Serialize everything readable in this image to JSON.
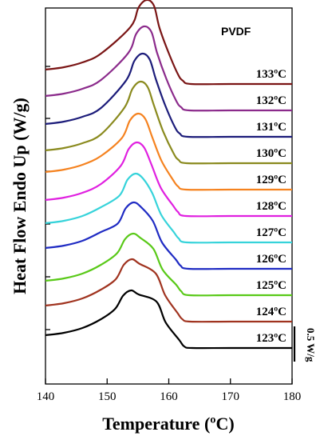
{
  "chart_data": {
    "type": "line",
    "title": "PVDF",
    "xlabel": "Temperature (ºC)",
    "ylabel": "Heat Flow Endo Up (W/g)",
    "xlim": [
      140,
      180
    ],
    "xticks": [
      140,
      150,
      160,
      170,
      180
    ],
    "xtick_labels": [
      "140",
      "150",
      "160",
      "170",
      "180"
    ],
    "scale_bar_label": "0.5 W/g",
    "grid": false,
    "series": [
      {
        "name": "123ºC",
        "color": "#000000",
        "onset_ht": 0.16,
        "peak_t": 153.9,
        "peak_ht": 0.72,
        "shoulder_t": 158.0,
        "shoulder_ht": 0.58,
        "end_t": 162.5,
        "end_ht": 0.02,
        "tail_ht": 0.0
      },
      {
        "name": "124ºC",
        "color": "#a0331f",
        "onset_ht": 0.2,
        "peak_t": 154.0,
        "peak_ht": 0.78,
        "shoulder_t": 157.9,
        "shoulder_ht": 0.6,
        "end_t": 162.2,
        "end_ht": 0.03,
        "tail_ht": 0.0
      },
      {
        "name": "125ºC",
        "color": "#59c918",
        "onset_ht": 0.18,
        "peak_t": 154.2,
        "peak_ht": 0.77,
        "shoulder_t": 157.5,
        "shoulder_ht": 0.58,
        "end_t": 162.0,
        "end_ht": 0.05,
        "tail_ht": 0.0
      },
      {
        "name": "126ºC",
        "color": "#1f2bc3",
        "onset_ht": 0.26,
        "peak_t": 154.3,
        "peak_ht": 0.83,
        "shoulder_t": 157.4,
        "shoulder_ht": 0.6,
        "end_t": 161.9,
        "end_ht": 0.04,
        "tail_ht": 0.0
      },
      {
        "name": "127ºC",
        "color": "#36d3da",
        "onset_ht": 0.24,
        "peak_t": 154.6,
        "peak_ht": 0.86,
        "shoulder_t": 157.3,
        "shoulder_ht": 0.62,
        "end_t": 161.6,
        "end_ht": 0.05,
        "tail_ht": 0.0
      },
      {
        "name": "128ºC",
        "color": "#e020e0",
        "onset_ht": 0.2,
        "peak_t": 154.8,
        "peak_ht": 0.92,
        "shoulder_t": 157.2,
        "shoulder_ht": 0.64,
        "end_t": 161.5,
        "end_ht": 0.05,
        "tail_ht": 0.0
      },
      {
        "name": "129ºC",
        "color": "#f5821f",
        "onset_ht": 0.22,
        "peak_t": 155.0,
        "peak_ht": 0.95,
        "shoulder_t": 157.3,
        "shoulder_ht": 0.66,
        "end_t": 161.5,
        "end_ht": 0.04,
        "tail_ht": 0.0
      },
      {
        "name": "130ºC",
        "color": "#8a8a1e",
        "onset_ht": 0.16,
        "peak_t": 155.4,
        "peak_ht": 1.02,
        "shoulder_t": 157.6,
        "shoulder_ht": 0.72,
        "end_t": 161.6,
        "end_ht": 0.04,
        "tail_ht": 0.0
      },
      {
        "name": "131ºC",
        "color": "#1c1c7a",
        "onset_ht": 0.16,
        "peak_t": 155.7,
        "peak_ht": 1.04,
        "shoulder_t": 157.9,
        "shoulder_ht": 0.72,
        "end_t": 161.8,
        "end_ht": 0.04,
        "tail_ht": 0.0
      },
      {
        "name": "132ºC",
        "color": "#8b2a8b",
        "onset_ht": 0.18,
        "peak_t": 156.0,
        "peak_ht": 1.05,
        "shoulder_t": 158.1,
        "shoulder_ht": 0.72,
        "end_t": 162.0,
        "end_ht": 0.04,
        "tail_ht": 0.0
      },
      {
        "name": "133ºC",
        "color": "#7a1515",
        "onset_ht": 0.18,
        "peak_t": 156.4,
        "peak_ht": 1.05,
        "shoulder_t": 158.5,
        "shoulder_ht": 0.7,
        "end_t": 162.3,
        "end_ht": 0.04,
        "tail_ht": 0.0
      }
    ]
  }
}
